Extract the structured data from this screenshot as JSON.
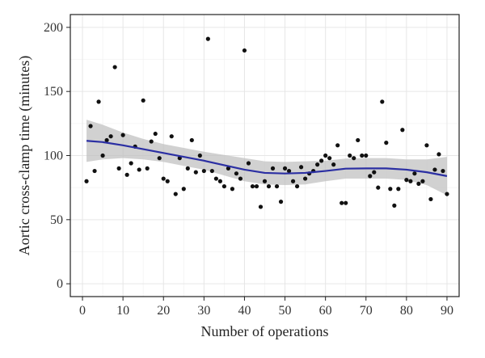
{
  "chart_data": {
    "type": "scatter",
    "title": "",
    "xlabel": "Number of operations",
    "ylabel": "Aortic cross-clamp time (minutes)",
    "xlim": [
      -3,
      93
    ],
    "ylim": [
      -10,
      210
    ],
    "xticks": [
      0,
      10,
      20,
      30,
      40,
      50,
      60,
      70,
      80,
      90
    ],
    "yticks": [
      0,
      50,
      100,
      150,
      200
    ],
    "grid": true,
    "legend": "none",
    "colors": {
      "points": "#111111",
      "smooth_line": "#2b2fa3",
      "confidence_band": "#bdbdbd",
      "background": "#ffffff",
      "grid": "#e6e6e6",
      "border": "#222222"
    },
    "points": {
      "x": [
        1,
        2,
        3,
        4,
        5,
        6,
        7,
        8,
        9,
        10,
        11,
        12,
        13,
        14,
        15,
        16,
        17,
        18,
        19,
        20,
        21,
        22,
        23,
        24,
        25,
        26,
        27,
        28,
        29,
        30,
        31,
        32,
        33,
        34,
        35,
        36,
        37,
        38,
        39,
        40,
        41,
        42,
        43,
        44,
        45,
        46,
        47,
        48,
        49,
        50,
        51,
        52,
        53,
        54,
        55,
        56,
        57,
        58,
        59,
        60,
        61,
        62,
        63,
        64,
        65,
        66,
        67,
        68,
        69,
        70,
        71,
        72,
        73,
        74,
        75,
        76,
        77,
        78,
        79,
        80,
        81,
        82,
        83,
        84,
        85,
        86,
        87,
        88,
        89,
        90
      ],
      "y": [
        80,
        123,
        88,
        142,
        100,
        112,
        115,
        169,
        90,
        116,
        85,
        94,
        107,
        89,
        143,
        90,
        111,
        117,
        98,
        82,
        80,
        115,
        70,
        98,
        74,
        90,
        112,
        87,
        100,
        88,
        191,
        88,
        82,
        80,
        76,
        90,
        74,
        86,
        82,
        182,
        94,
        76,
        76,
        60,
        80,
        76,
        90,
        76,
        64,
        90,
        88,
        80,
        76,
        91,
        82,
        86,
        88,
        93,
        96,
        100,
        98,
        93,
        108,
        63,
        63,
        100,
        98,
        112,
        100,
        100,
        84,
        87,
        75,
        142,
        110,
        74,
        61,
        74,
        120,
        81,
        80,
        86,
        78,
        80,
        108,
        66,
        89,
        101,
        88,
        70
      ]
    },
    "smooth": {
      "x": [
        1,
        5,
        10,
        15,
        20,
        25,
        30,
        35,
        40,
        45,
        50,
        55,
        60,
        65,
        70,
        75,
        80,
        85,
        90
      ],
      "y": [
        111.5,
        110.5,
        108,
        105,
        102,
        99,
        96,
        92.5,
        89,
        86.5,
        86,
        86.5,
        88,
        89.8,
        90,
        90,
        89,
        87,
        84
      ],
      "lower": [
        95,
        97,
        98,
        97,
        95,
        92,
        89,
        84.5,
        80,
        77.5,
        77,
        77.5,
        80,
        82,
        82,
        82,
        81,
        77,
        69
      ],
      "upper": [
        128,
        124,
        118,
        113,
        109,
        106,
        103,
        100.5,
        98,
        95.5,
        95,
        95.5,
        96,
        97.6,
        98,
        98,
        97,
        97,
        99
      ]
    }
  }
}
